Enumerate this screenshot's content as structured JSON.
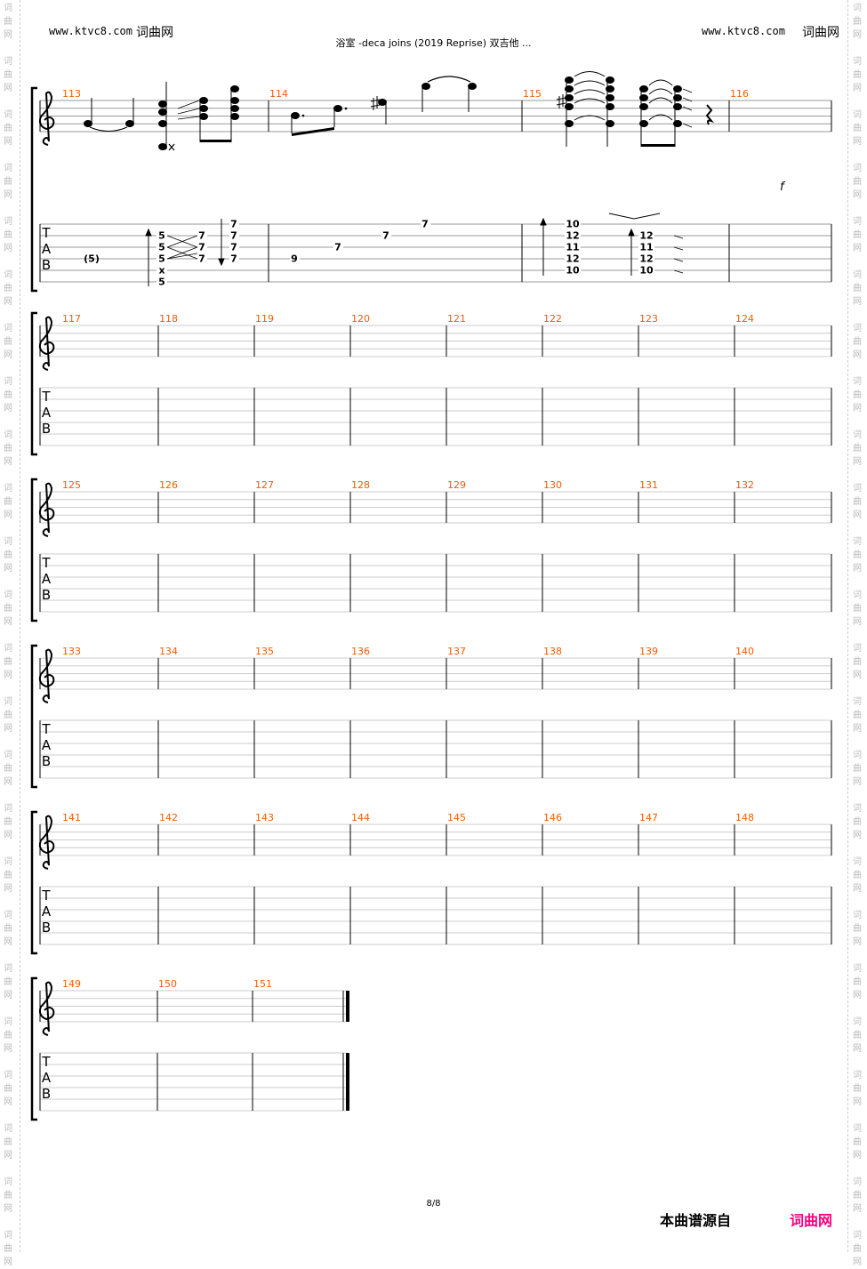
{
  "header": {
    "left_site": "www.ktvc8.com",
    "left_brand": "词曲网",
    "title": "浴室 -deca joins (2019 Reprise) 双吉他 ...",
    "right_site": "www.ktvc8.com",
    "right_brand": "词曲网"
  },
  "watermark": [
    "词",
    "曲",
    "网"
  ],
  "tab_letters": [
    "T",
    "A",
    "B"
  ],
  "systems": [
    {
      "measures": [
        "113",
        "114",
        "115",
        "116"
      ]
    },
    {
      "measures": [
        "117",
        "118",
        "119",
        "120",
        "121",
        "122",
        "123",
        "124"
      ]
    },
    {
      "measures": [
        "125",
        "126",
        "127",
        "128",
        "129",
        "130",
        "131",
        "132"
      ]
    },
    {
      "measures": [
        "133",
        "134",
        "135",
        "136",
        "137",
        "138",
        "139",
        "140"
      ]
    },
    {
      "measures": [
        "141",
        "142",
        "143",
        "144",
        "145",
        "146",
        "147",
        "148"
      ]
    },
    {
      "measures": [
        "149",
        "150",
        "151"
      ]
    }
  ],
  "system1_tab": {
    "m113": {
      "ghost": "(5)",
      "chord1": [
        "5",
        "5",
        "5",
        "x",
        "5"
      ],
      "chord2": [
        "7",
        "7",
        "7"
      ],
      "chord3": [
        "7",
        "7",
        "7",
        "7"
      ]
    },
    "m114": {
      "notes": [
        "9",
        "7",
        "7",
        "7"
      ]
    },
    "m115": {
      "chord1": [
        "10",
        "12",
        "11",
        "12",
        "10"
      ],
      "chord2": [
        "12",
        "11",
        "12",
        "10"
      ]
    }
  },
  "dynamic": "f",
  "page_number": "8/8",
  "footer": {
    "source_label": "本曲谱源自",
    "brand": "词曲网"
  },
  "colors": {
    "measure_number": "#ff5a00",
    "footer_brand": "#ff0080",
    "watermark": "#bbbbbb"
  }
}
